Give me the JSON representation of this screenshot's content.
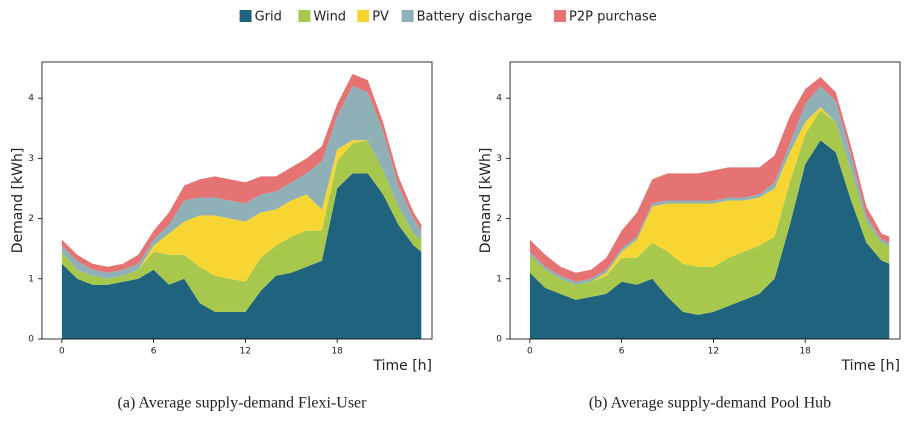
{
  "chart_data": [
    {
      "type": "stacked_area",
      "caption": "(a) Average supply-demand Flexi-User",
      "xlabel": "Time [h]",
      "ylabel": "Demand [kWh]",
      "x": [
        0,
        1,
        2,
        3,
        4,
        5,
        6,
        7,
        8,
        9,
        10,
        11,
        12,
        13,
        14,
        15,
        16,
        17,
        18,
        19,
        20,
        21,
        22,
        23,
        23.5
      ],
      "xlim": [
        -1.3,
        24.2
      ],
      "xticks": [
        0,
        6,
        12,
        18
      ],
      "ylim": [
        0,
        4.6
      ],
      "yticks": [
        0,
        1,
        2,
        3,
        4
      ],
      "series": [
        {
          "name": "Grid",
          "color": "#1f637f",
          "values": [
            1.25,
            1.0,
            0.9,
            0.9,
            0.95,
            1.0,
            1.15,
            0.9,
            1.0,
            0.6,
            0.45,
            0.45,
            0.45,
            0.8,
            1.05,
            1.1,
            1.2,
            1.3,
            2.5,
            2.75,
            2.75,
            2.4,
            1.9,
            1.55,
            1.45
          ]
        },
        {
          "name": "Wind",
          "color": "#a8c74d",
          "values": [
            0.2,
            0.15,
            0.15,
            0.1,
            0.1,
            0.15,
            0.3,
            0.5,
            0.4,
            0.6,
            0.6,
            0.55,
            0.5,
            0.55,
            0.5,
            0.6,
            0.6,
            0.5,
            0.45,
            0.5,
            0.55,
            0.4,
            0.3,
            0.2,
            0.2
          ]
        },
        {
          "name": "PV",
          "color": "#f7d634",
          "values": [
            0,
            0,
            0,
            0,
            0,
            0,
            0.1,
            0.35,
            0.55,
            0.85,
            1.0,
            1.0,
            1.0,
            0.75,
            0.6,
            0.6,
            0.6,
            0.35,
            0.2,
            0.05,
            0,
            0,
            0,
            0,
            0
          ]
        },
        {
          "name": "Battery discharge",
          "color": "#8fb0b7",
          "values": [
            0.1,
            0.15,
            0.1,
            0.1,
            0.1,
            0.1,
            0.1,
            0.15,
            0.35,
            0.3,
            0.3,
            0.3,
            0.3,
            0.3,
            0.3,
            0.3,
            0.35,
            0.8,
            0.55,
            0.9,
            0.8,
            0.65,
            0.35,
            0.25,
            0.15
          ]
        },
        {
          "name": "P2P purchase",
          "color": "#e57373",
          "values": [
            0.1,
            0.1,
            0.1,
            0.1,
            0.1,
            0.15,
            0.15,
            0.2,
            0.25,
            0.3,
            0.35,
            0.35,
            0.35,
            0.3,
            0.25,
            0.25,
            0.25,
            0.25,
            0.2,
            0.2,
            0.2,
            0.15,
            0.15,
            0.1,
            0.1
          ]
        }
      ]
    },
    {
      "type": "stacked_area",
      "caption": "(b) Average supply-demand Pool Hub",
      "xlabel": "Time [h]",
      "ylabel": "Demand [kWh]",
      "x": [
        0,
        1,
        2,
        3,
        4,
        5,
        6,
        7,
        8,
        9,
        10,
        11,
        12,
        13,
        14,
        15,
        16,
        17,
        18,
        19,
        20,
        21,
        22,
        23,
        23.5
      ],
      "xlim": [
        -1.3,
        24.2
      ],
      "xticks": [
        0,
        6,
        12,
        18
      ],
      "ylim": [
        0,
        4.6
      ],
      "yticks": [
        0,
        1,
        2,
        3,
        4
      ],
      "series": [
        {
          "name": "Grid",
          "color": "#1f637f",
          "values": [
            1.1,
            0.85,
            0.75,
            0.65,
            0.7,
            0.75,
            0.95,
            0.9,
            1.0,
            0.7,
            0.45,
            0.4,
            0.45,
            0.55,
            0.65,
            0.75,
            1.0,
            1.9,
            2.9,
            3.3,
            3.1,
            2.3,
            1.6,
            1.3,
            1.25
          ]
        },
        {
          "name": "Wind",
          "color": "#a8c74d",
          "values": [
            0.3,
            0.3,
            0.25,
            0.25,
            0.25,
            0.3,
            0.4,
            0.45,
            0.6,
            0.75,
            0.8,
            0.8,
            0.75,
            0.8,
            0.8,
            0.8,
            0.7,
            0.7,
            0.5,
            0.5,
            0.5,
            0.5,
            0.35,
            0.3,
            0.3
          ]
        },
        {
          "name": "PV",
          "color": "#f7d634",
          "values": [
            0,
            0,
            0,
            0,
            0,
            0.05,
            0.1,
            0.3,
            0.6,
            0.8,
            1.0,
            1.05,
            1.05,
            0.95,
            0.85,
            0.8,
            0.8,
            0.5,
            0.2,
            0.05,
            0,
            0,
            0,
            0,
            0
          ]
        },
        {
          "name": "Battery discharge",
          "color": "#8fb0b7",
          "values": [
            0.05,
            0.05,
            0.05,
            0.05,
            0.05,
            0.05,
            0.05,
            0.05,
            0.05,
            0.05,
            0.05,
            0.05,
            0.05,
            0.05,
            0.05,
            0.05,
            0.1,
            0.15,
            0.3,
            0.35,
            0.35,
            0.25,
            0.1,
            0.05,
            0.05
          ]
        },
        {
          "name": "P2P purchase",
          "color": "#e57373",
          "values": [
            0.2,
            0.2,
            0.15,
            0.15,
            0.15,
            0.2,
            0.3,
            0.4,
            0.4,
            0.45,
            0.45,
            0.45,
            0.5,
            0.5,
            0.5,
            0.45,
            0.45,
            0.45,
            0.25,
            0.15,
            0.15,
            0.15,
            0.15,
            0.1,
            0.1
          ]
        }
      ]
    }
  ]
}
